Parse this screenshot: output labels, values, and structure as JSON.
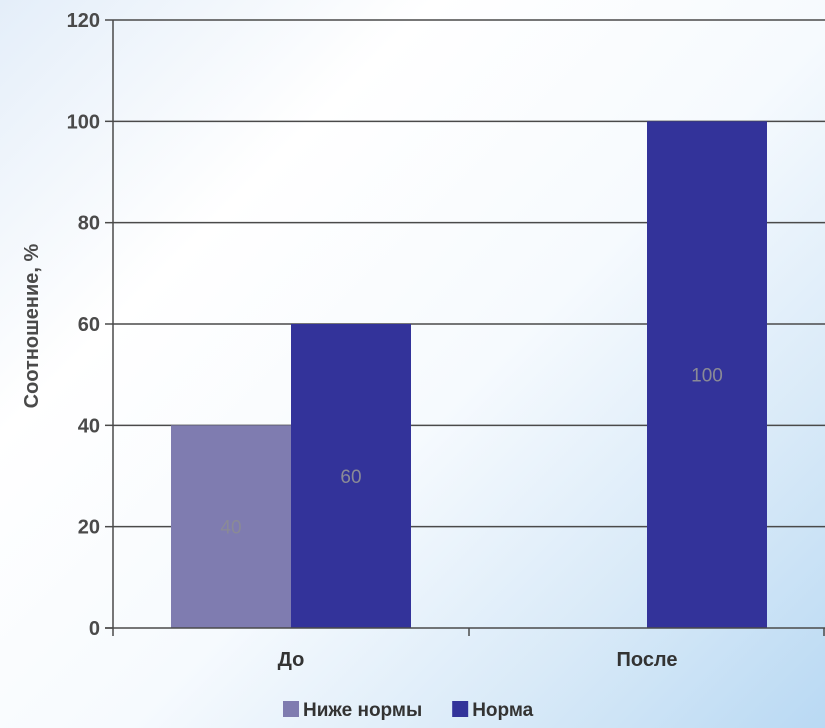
{
  "chart_data": {
    "type": "bar",
    "title": "",
    "xlabel": "",
    "ylabel": "Соотношение, %",
    "ylim": [
      0,
      120
    ],
    "yticks": [
      0,
      20,
      40,
      60,
      80,
      100,
      120
    ],
    "categories": [
      "До",
      "После"
    ],
    "series": [
      {
        "name": "Ниже нормы",
        "values": [
          40,
          null
        ],
        "color": "#7f7cb0"
      },
      {
        "name": "Норма",
        "values": [
          60,
          100
        ],
        "color": "#33339a"
      }
    ],
    "data_labels": true,
    "grid": "horizontal",
    "legend": "bottom"
  }
}
